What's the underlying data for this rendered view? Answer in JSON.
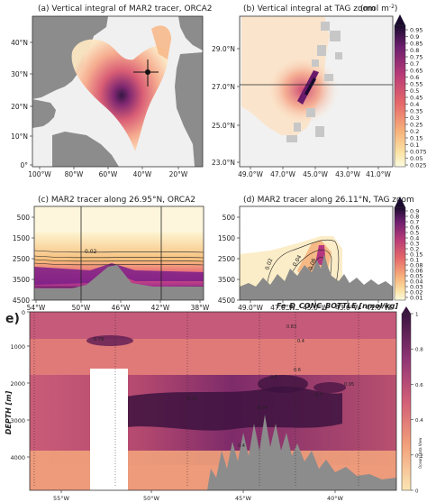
{
  "chart_data": [
    {
      "panel": "a",
      "type": "heatmap",
      "title": "(a) Vertical integral of MAR2 tracer, ORCA2",
      "x_ticks": [
        "100°W",
        "80°W",
        "60°W",
        "40°W",
        "20°W"
      ],
      "y_ticks": [
        "0°",
        "10°N",
        "20°N",
        "30°N",
        "40°N"
      ],
      "xlim": [
        -102,
        -13
      ],
      "ylim": [
        -3,
        50
      ],
      "source": {
        "lon": -44.8,
        "lat": 26.1
      }
    },
    {
      "panel": "b",
      "type": "heatmap",
      "title": "(b) Vertical integral at TAG zoom",
      "units": "(mol m",
      "units_exp": "-2",
      "units_close": ")",
      "x_ticks": [
        "49.0°W",
        "47.0°W",
        "45.0°W",
        "43.0°W",
        "41.0°W"
      ],
      "y_ticks": [
        "23.0°N",
        "25.0°N",
        "27.0°N",
        "29.0°N"
      ],
      "xlim": [
        -49.6,
        -40.2
      ],
      "ylim": [
        22.2,
        30.2
      ],
      "section_lat": 26.11,
      "colorbar_ticks": [
        "0.95",
        "0.9",
        "0.85",
        "0.8",
        "0.75",
        "0.7",
        "0.65",
        "0.6",
        "0.55",
        "0.5",
        "0.45",
        "0.4",
        "0.35",
        "0.3",
        "0.25",
        "0.2",
        "0.15",
        "0.1",
        "0.075",
        "0.05",
        "0.025"
      ]
    },
    {
      "panel": "c",
      "type": "heatmap",
      "title": "(c) MAR2 tracer along 26.95°N, ORCA2",
      "x_ticks": [
        "54°W",
        "50°W",
        "46°W",
        "42°W",
        "38°W"
      ],
      "y_ticks": [
        "500",
        "1500",
        "2500",
        "3500",
        "4500"
      ],
      "xlim": [
        -54,
        -36
      ],
      "ylim": [
        4500,
        0
      ],
      "contour_label": "0.02",
      "vertical_lines_lon": [
        -50,
        -38
      ]
    },
    {
      "panel": "d",
      "type": "heatmap",
      "title": "(d) MAR2 tracer along 26.11°N, TAG zoom",
      "x_ticks": [
        "49.0°W",
        "47.0°W",
        "45.0°W",
        "43.0°W",
        "41.0°W"
      ],
      "y_ticks": [
        "500",
        "1500",
        "2500",
        "3500",
        "4500"
      ],
      "xlim": [
        -49.6,
        -40.2
      ],
      "ylim": [
        4500,
        0
      ],
      "contour_labels": [
        "0.02",
        "0.04",
        "0.06"
      ],
      "colorbar_ticks": [
        "0.9",
        "0.8",
        "0.7",
        "0.6",
        "0.5",
        "0.4",
        "0.3",
        "0.2",
        "0.15",
        "0.1",
        "0.08",
        "0.06",
        "0.05",
        "0.04",
        "0.03",
        "0.02",
        "0.01"
      ]
    },
    {
      "panel": "e",
      "type": "heatmap",
      "label": "e)",
      "title": "Fe_D_CONC_BOTTLE [nmol/kg]",
      "ylabel": "DEPTH [m]",
      "x_ticks": [
        "55°W",
        "50°W",
        "45°W",
        "40°W"
      ],
      "y_ticks": [
        "0",
        "1000",
        "2000",
        "3000",
        "4000"
      ],
      "xlim": [
        -57.2,
        -37.2
      ],
      "ylim": [
        4600,
        0
      ],
      "colorbar_ticks": [
        "0",
        "0.2",
        "0.4",
        "0.6",
        "0.8",
        "1"
      ],
      "colorbar_label": "Ocean Data View",
      "point_labels": [
        "0.79",
        "0.71",
        "0.83",
        "0.4",
        "0.6",
        "0.5",
        "0.95",
        "0.54",
        "0.7",
        "0.4"
      ]
    }
  ]
}
